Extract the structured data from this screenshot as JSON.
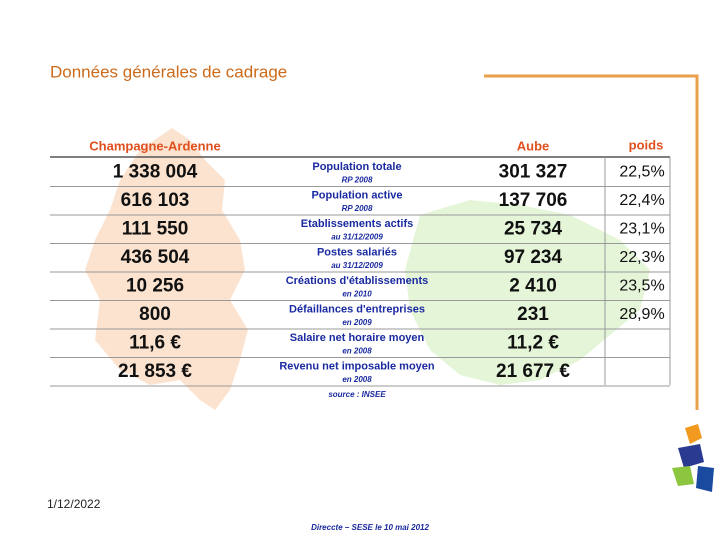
{
  "title": "Données générales de cadrage",
  "table": {
    "headers": {
      "region": "Champagne-Ardenne",
      "dept": "Aube",
      "weight": "poids"
    },
    "rows": [
      {
        "region": "1 338 004",
        "label": "Population totale",
        "note": "RP 2008",
        "dept": "301 327",
        "weight": "22,5%"
      },
      {
        "region": "616 103",
        "label": "Population active",
        "note": "RP 2008",
        "dept": "137 706",
        "weight": "22,4%"
      },
      {
        "region": "111 550",
        "label": "Etablissements actifs",
        "note": "au 31/12/2009",
        "dept": "25 734",
        "weight": "23,1%"
      },
      {
        "region": "436 504",
        "label": "Postes salariés",
        "note": "au 31/12/2009",
        "dept": "97 234",
        "weight": "22,3%"
      },
      {
        "region": "10 256",
        "label": "Créations d'établissements",
        "note": "en 2010",
        "dept": "2 410",
        "weight": "23,5%"
      },
      {
        "region": "800",
        "label": "Défaillances d'entreprises",
        "note": "en 2009",
        "dept": "231",
        "weight": "28,9%"
      },
      {
        "region": "11,6 €",
        "label": "Salaire net horaire moyen",
        "note": "en 2008",
        "dept": "11,2 €"
      },
      {
        "region": "21 853 €",
        "label": "Revenu net imposable moyen",
        "note": "en 2008",
        "dept": "21 677 €"
      }
    ],
    "source": "source : INSEE"
  },
  "footer": {
    "date": "1/12/2022",
    "credit": "Direccte – SESE le 10 mai 2012"
  }
}
